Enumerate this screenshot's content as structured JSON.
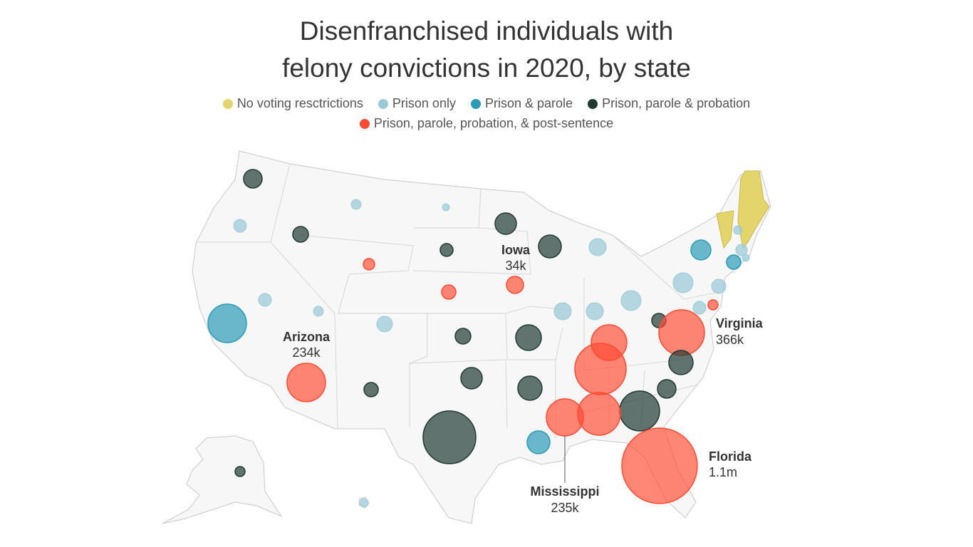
{
  "title_line1": "Disenfranchised individuals with",
  "title_line2": "felony convictions in 2020, by state",
  "legend": [
    {
      "label": "No voting resctrictions",
      "color": "#e3d46b"
    },
    {
      "label": "Prison only",
      "color": "#9ccbd8"
    },
    {
      "label": "Prison & parole",
      "color": "#2b9bb8"
    },
    {
      "label": "Prison, parole & probation",
      "color": "#1f3a33"
    },
    {
      "label": "Prison, parole, probation, & post-sentence",
      "color": "#ff4b33"
    }
  ],
  "annotations": [
    {
      "state": "Iowa",
      "value": "34k"
    },
    {
      "state": "Arizona",
      "value": "234k"
    },
    {
      "state": "Virginia",
      "value": "366k"
    },
    {
      "state": "Florida",
      "value": "1.1m"
    },
    {
      "state": "Mississippi",
      "value": "235k"
    }
  ],
  "no_restriction_states": [
    "Vermont",
    "Maine"
  ],
  "states": [
    {
      "state": "Washington",
      "category": 3
    },
    {
      "state": "Oregon",
      "category": 1
    },
    {
      "state": "Idaho",
      "category": 3
    },
    {
      "state": "Montana",
      "category": 1
    },
    {
      "state": "North Dakota",
      "category": 1
    },
    {
      "state": "Minnesota",
      "category": 3
    },
    {
      "state": "Wisconsin",
      "category": 3
    },
    {
      "state": "Michigan",
      "category": 1
    },
    {
      "state": "South Dakota",
      "category": 3
    },
    {
      "state": "Wyoming",
      "category": 4
    },
    {
      "state": "Iowa",
      "category": 4
    },
    {
      "state": "Nebraska",
      "category": 4
    },
    {
      "state": "Nevada",
      "category": 1
    },
    {
      "state": "Utah",
      "category": 1
    },
    {
      "state": "California",
      "category": 2
    },
    {
      "state": "Colorado",
      "category": 1
    },
    {
      "state": "Illinois",
      "category": 1
    },
    {
      "state": "Indiana",
      "category": 1
    },
    {
      "state": "Ohio",
      "category": 1
    },
    {
      "state": "Pennsylvania",
      "category": 1
    },
    {
      "state": "New York",
      "category": 2
    },
    {
      "state": "New Hampshire",
      "category": 1
    },
    {
      "state": "Massachusetts",
      "category": 1
    },
    {
      "state": "Rhode Island",
      "category": 1
    },
    {
      "state": "Connecticut",
      "category": 2
    },
    {
      "state": "New Jersey",
      "category": 1
    },
    {
      "state": "Delaware",
      "category": 4
    },
    {
      "state": "Maryland",
      "category": 1
    },
    {
      "state": "West Virginia",
      "category": 3
    },
    {
      "state": "Virginia",
      "category": 4
    },
    {
      "state": "Kentucky",
      "category": 4
    },
    {
      "state": "Tennessee",
      "category": 4
    },
    {
      "state": "North Carolina",
      "category": 3
    },
    {
      "state": "Kansas",
      "category": 3
    },
    {
      "state": "Missouri",
      "category": 3
    },
    {
      "state": "Arizona",
      "category": 4
    },
    {
      "state": "New Mexico",
      "category": 3
    },
    {
      "state": "Oklahoma",
      "category": 3
    },
    {
      "state": "Arkansas",
      "category": 3
    },
    {
      "state": "South Carolina",
      "category": 3
    },
    {
      "state": "Georgia",
      "category": 3
    },
    {
      "state": "Alabama",
      "category": 4
    },
    {
      "state": "Mississippi",
      "category": 4
    },
    {
      "state": "Texas",
      "category": 3
    },
    {
      "state": "Louisiana",
      "category": 2
    },
    {
      "state": "Florida",
      "category": 4
    },
    {
      "state": "Alaska",
      "category": 3
    },
    {
      "state": "Hawaii",
      "category": 1
    }
  ]
}
